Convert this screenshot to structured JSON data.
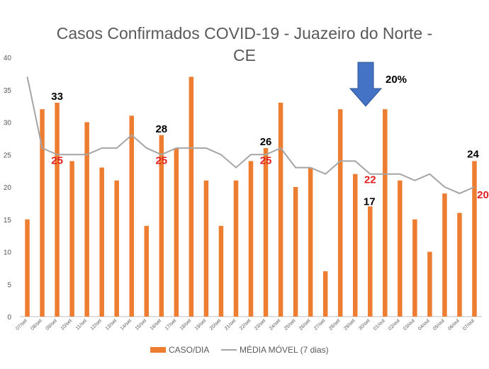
{
  "chart_data": {
    "type": "bar",
    "title_line1": "Casos Confirmados COVID-19 - Juazeiro do Norte -",
    "title_line2": "CE",
    "categories": [
      "07/set",
      "08/set",
      "09/set",
      "10/set",
      "11/set",
      "12/set",
      "13/set",
      "14/set",
      "15/set",
      "16/set",
      "17/set",
      "18/set",
      "19/set",
      "20/set",
      "21/set",
      "22/set",
      "23/set",
      "24/set",
      "25/set",
      "26/set",
      "27/set",
      "28/set",
      "29/set",
      "30/set",
      "01/out",
      "02/out",
      "03/out",
      "04/out",
      "05/out",
      "06/out",
      "07/out"
    ],
    "series": [
      {
        "name": "CASO/DIA",
        "kind": "bar",
        "color": "#ED7D31",
        "values": [
          15,
          32,
          33,
          24,
          30,
          23,
          21,
          31,
          14,
          28,
          26,
          37,
          21,
          14,
          21,
          24,
          26,
          33,
          20,
          23,
          7,
          32,
          22,
          17,
          32,
          21,
          15,
          10,
          19,
          16,
          24
        ]
      },
      {
        "name": "MÉDIA MÓVEL (7 dias)",
        "kind": "line",
        "color": "#A5A5A5",
        "values": [
          37,
          26,
          25,
          25,
          25,
          26,
          26,
          28,
          26,
          25,
          26,
          26,
          26,
          25,
          23,
          25,
          25,
          26,
          23,
          23,
          22,
          24,
          24,
          22,
          22,
          22,
          21,
          22,
          20,
          19,
          20
        ]
      }
    ],
    "ylim": [
      0,
      40
    ],
    "yticks": [
      0,
      5,
      10,
      15,
      20,
      25,
      30,
      35,
      40
    ],
    "grid": false,
    "legend_position": "bottom",
    "annotations": [
      {
        "text": "33",
        "category": "09/set",
        "value": 33,
        "color": "#000000"
      },
      {
        "text": "28",
        "category": "16/set",
        "value": 28,
        "color": "#000000"
      },
      {
        "text": "26",
        "category": "23/set",
        "value": 26,
        "color": "#000000"
      },
      {
        "text": "17",
        "category": "30/set",
        "value": 17,
        "color": "#000000"
      },
      {
        "text": "24",
        "category": "07/out",
        "value": 24,
        "color": "#000000"
      },
      {
        "text": "25",
        "category": "09/set",
        "value": 25,
        "color": "#E02020"
      },
      {
        "text": "25",
        "category": "16/set",
        "value": 25,
        "color": "#E02020"
      },
      {
        "text": "25",
        "category": "23/set",
        "value": 25,
        "color": "#E02020"
      },
      {
        "text": "22",
        "category": "30/set",
        "value": 22,
        "color": "#E02020"
      },
      {
        "text": "20",
        "category": "07/out",
        "value": 20,
        "color": "#E02020"
      }
    ],
    "callout": {
      "text": "20%",
      "arrow_color": "#4472C4",
      "arrow_direction": "down",
      "category": "30/set"
    }
  }
}
